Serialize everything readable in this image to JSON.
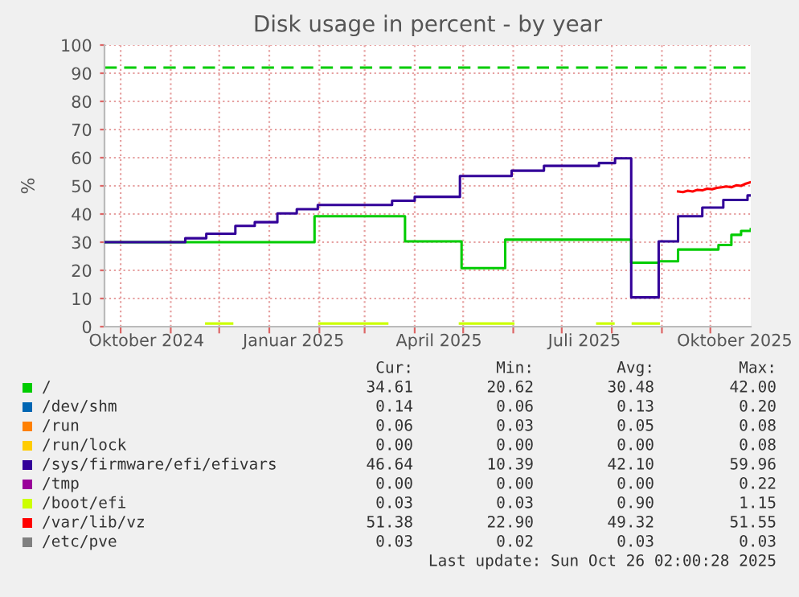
{
  "chart_data": {
    "type": "step",
    "title": "Disk usage in percent - by year",
    "ylabel": "%",
    "xlim": [
      "2024-09-21",
      "2025-10-26"
    ],
    "xticks": [
      {
        "value": "2024-10-01",
        "label": null
      },
      {
        "value": "2024-10-17",
        "label": "Oktober 2024"
      },
      {
        "value": "2024-11-01",
        "label": null
      },
      {
        "value": "2024-12-01",
        "label": null
      },
      {
        "value": "2025-01-01",
        "label": null
      },
      {
        "value": "2025-01-16",
        "label": "Januar 2025"
      },
      {
        "value": "2025-02-01",
        "label": null
      },
      {
        "value": "2025-03-01",
        "label": null
      },
      {
        "value": "2025-04-01",
        "label": null
      },
      {
        "value": "2025-04-16",
        "label": "April 2025"
      },
      {
        "value": "2025-05-01",
        "label": null
      },
      {
        "value": "2025-06-01",
        "label": null
      },
      {
        "value": "2025-07-01",
        "label": null
      },
      {
        "value": "2025-07-15",
        "label": "Juli 2025"
      },
      {
        "value": "2025-08-01",
        "label": null
      },
      {
        "value": "2025-09-01",
        "label": null
      },
      {
        "value": "2025-10-01",
        "label": null
      },
      {
        "value": "2025-10-16",
        "label": "Oktober 2025"
      }
    ],
    "ylim": [
      0,
      100
    ],
    "yticks": [
      0,
      10,
      20,
      30,
      40,
      50,
      60,
      70,
      80,
      90,
      100
    ],
    "grid": true,
    "legend": "bottom",
    "ref_lines": [
      {
        "axis": "y",
        "value": 92,
        "label": null,
        "color": "#00cc00",
        "line_style": "dashed"
      }
    ],
    "series": [
      {
        "name": "/",
        "color": "#00cc00",
        "x": [
          "2024-09-21",
          "2025-01-29",
          "2025-03-26",
          "2025-04-30",
          "2025-05-27",
          "2025-08-13",
          "2025-08-30",
          "2025-09-11",
          "2025-10-06",
          "2025-10-14",
          "2025-10-20",
          "2025-10-26"
        ],
        "values": [
          30.0,
          39.2,
          30.3,
          20.8,
          30.9,
          22.7,
          23.2,
          27.4,
          29.0,
          32.6,
          34.0,
          34.6
        ]
      },
      {
        "name": "/dev/shm",
        "color": "#0066b3"
      },
      {
        "name": "/run",
        "color": "#ff8000"
      },
      {
        "name": "/run/lock",
        "color": "#ffcc00"
      },
      {
        "name": "/sys/firmware/efi/efivars",
        "color": "#330099",
        "x": [
          "2024-09-21",
          "2024-11-10",
          "2024-11-23",
          "2024-12-11",
          "2024-12-23",
          "2025-01-06",
          "2025-01-18",
          "2025-01-31",
          "2025-03-18",
          "2025-04-01",
          "2025-04-29",
          "2025-05-31",
          "2025-06-20",
          "2025-07-24",
          "2025-08-03",
          "2025-08-13",
          "2025-08-30",
          "2025-09-11",
          "2025-09-26",
          "2025-10-09",
          "2025-10-24",
          "2025-10-26"
        ],
        "values": [
          30.0,
          31.4,
          33.0,
          35.8,
          37.1,
          40.2,
          41.7,
          43.2,
          44.7,
          46.1,
          53.5,
          55.4,
          57.1,
          58.1,
          59.8,
          10.4,
          30.3,
          39.2,
          42.3,
          45.0,
          46.6,
          46.6
        ]
      },
      {
        "name": "/tmp",
        "color": "#990099"
      },
      {
        "name": "/boot/efi",
        "color": "#ccff00",
        "type": "line",
        "x": [
          "2024-11-23",
          "2024-12-09",
          "2024-12-10",
          "2025-02-01",
          "2025-03-15",
          "2025-03-16",
          "2025-04-29",
          "2025-06-01",
          "2025-06-02",
          "2025-07-23",
          "2025-08-02",
          "2025-08-03",
          "2025-08-14",
          "2025-08-30"
        ],
        "values": [
          1.1,
          1.1,
          null,
          1.1,
          1.1,
          null,
          1.1,
          1.1,
          null,
          1.1,
          1.1,
          null,
          1.1,
          1.1
        ]
      },
      {
        "name": "/var/lib/vz",
        "color": "#ff0000",
        "type": "line",
        "x": [
          "2025-09-11",
          "2025-09-14",
          "2025-09-17",
          "2025-09-20",
          "2025-09-23",
          "2025-09-26",
          "2025-09-29",
          "2025-10-02",
          "2025-10-05",
          "2025-10-08",
          "2025-10-11",
          "2025-10-14",
          "2025-10-17",
          "2025-10-20",
          "2025-10-23",
          "2025-10-26"
        ],
        "values": [
          48.0,
          47.8,
          48.3,
          48.0,
          48.6,
          48.4,
          49.0,
          48.8,
          49.3,
          49.5,
          49.8,
          49.5,
          50.2,
          50.0,
          50.8,
          51.3
        ]
      },
      {
        "name": "/etc/pve",
        "color": "#808080"
      }
    ],
    "annotations": [
      "Cur:",
      "Min:",
      "Avg:",
      "Max:",
      "34.61",
      "20.62",
      "30.48",
      "42.00",
      "0.14",
      "0.06",
      "0.13",
      "0.20",
      "0.06",
      "0.03",
      "0.05",
      "0.08",
      "0.00",
      "0.00",
      "0.00",
      "0.08",
      "46.64",
      "10.39",
      "42.10",
      "59.96",
      "0.00",
      "0.00",
      "0.00",
      "0.22",
      "0.03",
      "0.03",
      "0.90",
      "1.15",
      "51.38",
      "22.90",
      "49.32",
      "51.55",
      "0.03",
      "0.02",
      "0.03",
      "0.03",
      "Last update: Sun Oct 26 02:00:28 2025"
    ]
  }
}
